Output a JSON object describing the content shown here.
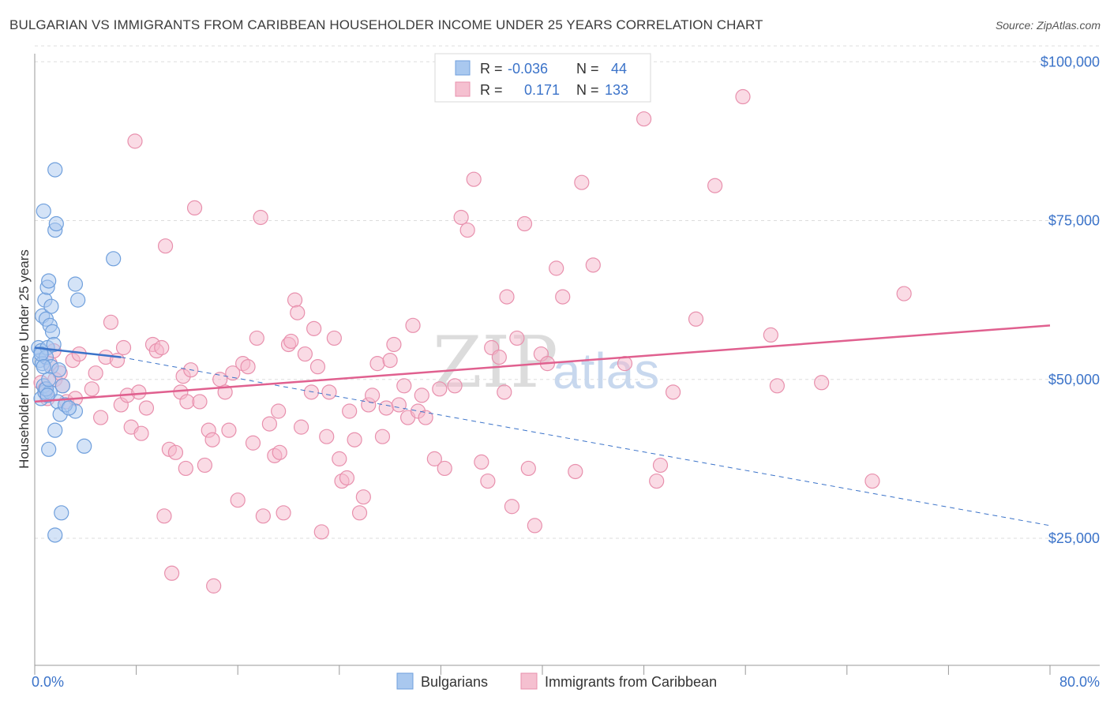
{
  "title": "BULGARIAN VS IMMIGRANTS FROM CARIBBEAN HOUSEHOLDER INCOME UNDER 25 YEARS CORRELATION CHART",
  "source": "Source: ZipAtlas.com",
  "watermark": {
    "zip": "ZIP",
    "atlas": "atlas"
  },
  "colors": {
    "blue": "#3b73c9",
    "blue_fill": "#a9c8ef",
    "pink": "#e0608f",
    "pink_fill": "#f5b8cb",
    "grid": "#dddddd"
  },
  "legend": {
    "r_label": "R =",
    "n_label": "N =",
    "rows": [
      {
        "r": "-0.036",
        "n": "44",
        "color": "blue"
      },
      {
        "r": "0.171",
        "n": "133",
        "color": "pink"
      }
    ]
  },
  "bottom_legend": [
    "Bulgarians",
    "Immigrants from Caribbean"
  ],
  "chart_data": {
    "type": "scatter",
    "title": "BULGARIAN VS IMMIGRANTS FROM CARIBBEAN HOUSEHOLDER INCOME UNDER 25 YEARS CORRELATION CHART",
    "xlabel": "",
    "ylabel": "Householder Income Under 25 years",
    "xlim": [
      0,
      80
    ],
    "ylim": [
      5000,
      105000
    ],
    "x_tick_labels": [
      "0.0%",
      "80.0%"
    ],
    "y_ticks": [
      25000,
      50000,
      75000,
      100000
    ],
    "y_tick_labels": [
      "$25,000",
      "$50,000",
      "$75,000",
      "$100,000"
    ],
    "series": [
      {
        "name": "Bulgarians",
        "color": "blue",
        "trend": {
          "x": [
            0,
            6.8
          ],
          "y": [
            55000,
            53500
          ],
          "dashed_to": [
            80,
            27000
          ]
        },
        "points": [
          [
            0.3,
            55000
          ],
          [
            0.4,
            53000
          ],
          [
            0.5,
            54500
          ],
          [
            0.6,
            52500
          ],
          [
            0.5,
            47000
          ],
          [
            0.8,
            48000
          ],
          [
            0.7,
            49000
          ],
          [
            1.0,
            55000
          ],
          [
            0.9,
            53500
          ],
          [
            0.6,
            60000
          ],
          [
            0.8,
            62500
          ],
          [
            1.0,
            64500
          ],
          [
            1.1,
            65500
          ],
          [
            1.3,
            61500
          ],
          [
            0.9,
            59500
          ],
          [
            1.2,
            58500
          ],
          [
            1.4,
            57500
          ],
          [
            1.5,
            55500
          ],
          [
            1.3,
            52000
          ],
          [
            1.2,
            48000
          ],
          [
            1.6,
            73500
          ],
          [
            1.7,
            74500
          ],
          [
            1.6,
            83000
          ],
          [
            0.7,
            76500
          ],
          [
            1.8,
            46500
          ],
          [
            2.0,
            44500
          ],
          [
            2.2,
            49000
          ],
          [
            1.9,
            51500
          ],
          [
            3.2,
            65000
          ],
          [
            3.4,
            62500
          ],
          [
            6.2,
            69000
          ],
          [
            3.9,
            39500
          ],
          [
            1.1,
            39000
          ],
          [
            1.6,
            42000
          ],
          [
            2.1,
            29000
          ],
          [
            1.6,
            25500
          ],
          [
            3.2,
            45000
          ],
          [
            2.4,
            46000
          ],
          [
            0.9,
            48500
          ],
          [
            0.5,
            54000
          ],
          [
            0.7,
            52000
          ],
          [
            1.0,
            47500
          ],
          [
            2.7,
            45500
          ],
          [
            1.1,
            50000
          ]
        ]
      },
      {
        "name": "Immigrants from Caribbean",
        "color": "pink",
        "trend": {
          "x": [
            0,
            80
          ],
          "y": [
            46500,
            58500
          ]
        },
        "points": [
          [
            0.5,
            49500
          ],
          [
            0.8,
            48500
          ],
          [
            1.0,
            47000
          ],
          [
            1.2,
            52500
          ],
          [
            1.5,
            54500
          ],
          [
            1.6,
            50000
          ],
          [
            2.0,
            51000
          ],
          [
            2.2,
            49000
          ],
          [
            2.5,
            46500
          ],
          [
            3.0,
            53000
          ],
          [
            3.5,
            54000
          ],
          [
            3.2,
            47000
          ],
          [
            4.5,
            48500
          ],
          [
            4.8,
            51000
          ],
          [
            5.2,
            44000
          ],
          [
            5.6,
            53500
          ],
          [
            6.0,
            59000
          ],
          [
            6.5,
            53000
          ],
          [
            6.8,
            46000
          ],
          [
            7.3,
            47500
          ],
          [
            7.6,
            42500
          ],
          [
            7.9,
            87500
          ],
          [
            8.2,
            48000
          ],
          [
            8.4,
            41500
          ],
          [
            8.8,
            45500
          ],
          [
            9.3,
            55500
          ],
          [
            9.6,
            54500
          ],
          [
            10.0,
            55000
          ],
          [
            10.3,
            71000
          ],
          [
            10.6,
            39000
          ],
          [
            10.8,
            19500
          ],
          [
            11.1,
            38500
          ],
          [
            11.5,
            48000
          ],
          [
            11.7,
            50500
          ],
          [
            12.0,
            46500
          ],
          [
            12.3,
            51500
          ],
          [
            12.6,
            77000
          ],
          [
            13.0,
            46500
          ],
          [
            13.4,
            36500
          ],
          [
            13.7,
            42000
          ],
          [
            14.0,
            40500
          ],
          [
            14.1,
            17500
          ],
          [
            14.6,
            50000
          ],
          [
            15.0,
            48000
          ],
          [
            15.3,
            42000
          ],
          [
            15.6,
            51000
          ],
          [
            16.0,
            31000
          ],
          [
            16.4,
            52500
          ],
          [
            16.8,
            52000
          ],
          [
            17.2,
            40000
          ],
          [
            17.5,
            56500
          ],
          [
            17.8,
            75500
          ],
          [
            18.0,
            28500
          ],
          [
            18.5,
            43000
          ],
          [
            18.9,
            38000
          ],
          [
            19.2,
            45000
          ],
          [
            19.6,
            29000
          ],
          [
            20.0,
            55500
          ],
          [
            20.2,
            56000
          ],
          [
            20.5,
            62500
          ],
          [
            20.7,
            60500
          ],
          [
            21.0,
            42500
          ],
          [
            21.3,
            54000
          ],
          [
            21.8,
            48000
          ],
          [
            22.0,
            58000
          ],
          [
            22.3,
            52000
          ],
          [
            22.6,
            26000
          ],
          [
            23.0,
            41000
          ],
          [
            23.2,
            48000
          ],
          [
            23.6,
            56500
          ],
          [
            24.0,
            37500
          ],
          [
            24.2,
            34000
          ],
          [
            24.6,
            34500
          ],
          [
            24.8,
            45000
          ],
          [
            25.2,
            40500
          ],
          [
            25.6,
            29000
          ],
          [
            25.9,
            31500
          ],
          [
            26.3,
            46000
          ],
          [
            26.6,
            47500
          ],
          [
            27.0,
            52500
          ],
          [
            27.4,
            41000
          ],
          [
            27.7,
            45500
          ],
          [
            28.0,
            53000
          ],
          [
            28.3,
            55500
          ],
          [
            28.7,
            46000
          ],
          [
            29.1,
            49000
          ],
          [
            29.4,
            44000
          ],
          [
            29.8,
            58500
          ],
          [
            30.2,
            45000
          ],
          [
            30.5,
            47500
          ],
          [
            30.8,
            44000
          ],
          [
            31.5,
            37500
          ],
          [
            31.9,
            48500
          ],
          [
            32.3,
            36000
          ],
          [
            33.1,
            49000
          ],
          [
            33.6,
            75500
          ],
          [
            34.1,
            73500
          ],
          [
            34.6,
            81500
          ],
          [
            35.2,
            37000
          ],
          [
            35.7,
            34000
          ],
          [
            36.0,
            55000
          ],
          [
            36.6,
            53500
          ],
          [
            37.0,
            48000
          ],
          [
            37.6,
            30000
          ],
          [
            37.2,
            63000
          ],
          [
            38.0,
            56500
          ],
          [
            38.6,
            74500
          ],
          [
            38.9,
            36000
          ],
          [
            39.4,
            27000
          ],
          [
            39.9,
            54000
          ],
          [
            40.4,
            52500
          ],
          [
            41.1,
            67500
          ],
          [
            41.6,
            63000
          ],
          [
            42.6,
            35500
          ],
          [
            43.1,
            81000
          ],
          [
            44.0,
            68000
          ],
          [
            46.5,
            52500
          ],
          [
            48.0,
            91000
          ],
          [
            49.3,
            36500
          ],
          [
            49.0,
            34000
          ],
          [
            50.3,
            48000
          ],
          [
            52.1,
            59500
          ],
          [
            53.6,
            80500
          ],
          [
            55.8,
            94500
          ],
          [
            58.0,
            57000
          ],
          [
            58.5,
            49000
          ],
          [
            62.0,
            49500
          ],
          [
            66.0,
            34000
          ],
          [
            68.5,
            63500
          ],
          [
            10.2,
            28500
          ],
          [
            7.0,
            55000
          ],
          [
            11.9,
            36000
          ],
          [
            19.3,
            38500
          ]
        ]
      }
    ]
  }
}
